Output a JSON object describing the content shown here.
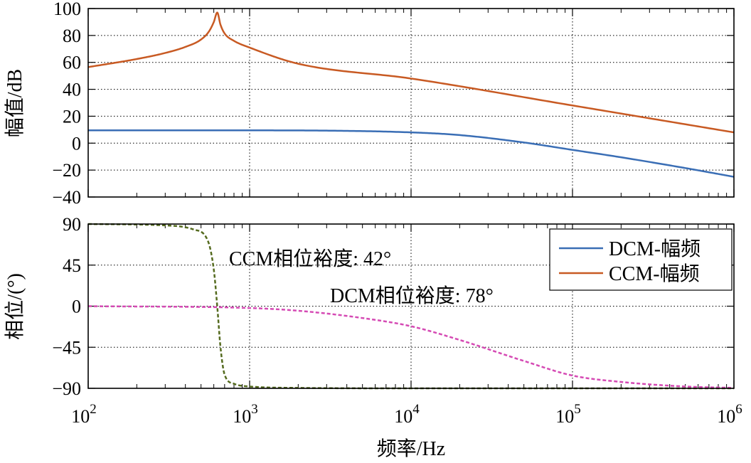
{
  "chart_data": [
    {
      "type": "line",
      "ylabel": "幅值/dB",
      "x_scale": "log",
      "xlim": [
        100,
        1000000
      ],
      "ylim": [
        -40,
        100
      ],
      "yticks": [
        "−40",
        "−20",
        "0",
        "20",
        "40",
        "60",
        "80",
        "100"
      ],
      "grid": true,
      "series": [
        {
          "name": "DCM-幅频",
          "color": "#3a6eb5",
          "style": "solid",
          "x": [
            100,
            1000,
            3000,
            10000,
            20000,
            50000,
            100000,
            200000,
            500000,
            1000000
          ],
          "y": [
            9.5,
            9.5,
            9.3,
            8.0,
            6.0,
            0.5,
            -5.0,
            -10.5,
            -18.5,
            -25.0
          ]
        },
        {
          "name": "CCM-幅频",
          "color": "#c85a23",
          "style": "solid",
          "x": [
            100,
            200,
            300,
            400,
            500,
            560,
            600,
            630,
            660,
            700,
            800,
            1000,
            2000,
            10000,
            100000,
            1000000
          ],
          "y": [
            56.5,
            62.5,
            67.0,
            71.5,
            77.0,
            83.0,
            90.0,
            97.0,
            88.0,
            81.5,
            76.0,
            71.0,
            59.0,
            48.0,
            28.0,
            8.0
          ]
        }
      ]
    },
    {
      "type": "line",
      "xlabel": "频率/Hz",
      "ylabel": "相位/(°)",
      "x_scale": "log",
      "xlim": [
        100,
        1000000
      ],
      "ylim": [
        -90,
        90
      ],
      "yticks": [
        "−90",
        "−45",
        "0",
        "45",
        "90"
      ],
      "xticks": [
        {
          "base": "10",
          "exp": "2"
        },
        {
          "base": "10",
          "exp": "3"
        },
        {
          "base": "10",
          "exp": "4"
        },
        {
          "base": "10",
          "exp": "5"
        },
        {
          "base": "10",
          "exp": "6"
        }
      ],
      "grid": true,
      "series": [
        {
          "color": "#556b1f",
          "style": "dashed",
          "x": [
            100,
            300,
            450,
            550,
            600,
            630,
            660,
            700,
            800,
            1000,
            2000,
            10000,
            1000000
          ],
          "y": [
            90,
            88.5,
            84,
            72,
            40,
            0,
            -45,
            -75,
            -85,
            -88,
            -89.5,
            -90,
            -90
          ]
        },
        {
          "color": "#d54ab4",
          "style": "dashed",
          "x": [
            100,
            1000,
            2000,
            5000,
            10000,
            20000,
            50000,
            100000,
            200000,
            500000,
            1000000
          ],
          "y": [
            0,
            -2,
            -5,
            -13,
            -22,
            -37,
            -60,
            -76,
            -83,
            -88,
            -89.5
          ]
        }
      ],
      "annotations": [
        "CCM相位裕度: 42°",
        "DCM相位裕度: 78°"
      ],
      "legend": {
        "position": "top-right",
        "entries": [
          {
            "label": "DCM-幅频",
            "color": "#3a6eb5"
          },
          {
            "label": "CCM-幅频",
            "color": "#c85a23"
          }
        ]
      }
    }
  ]
}
